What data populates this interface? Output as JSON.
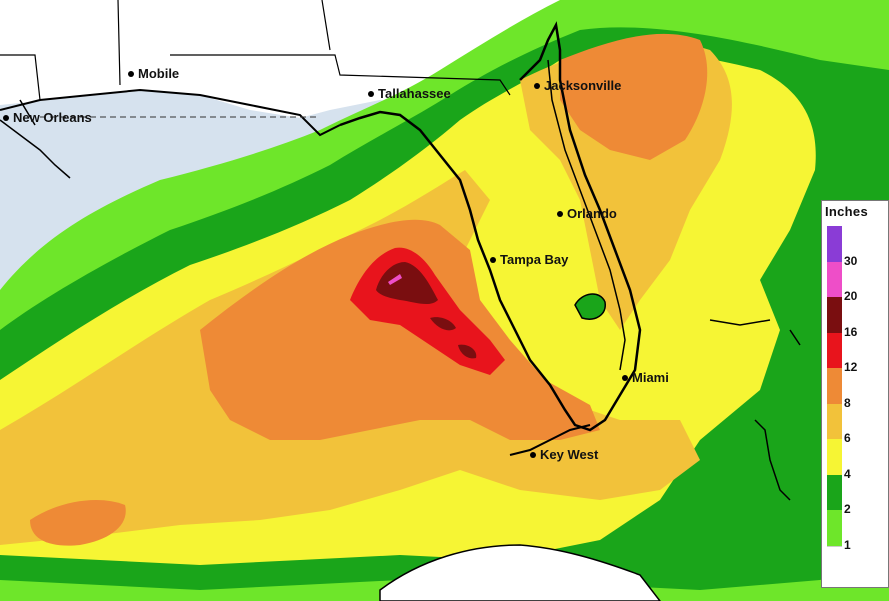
{
  "map": {
    "region": "Florida and Gulf of Mexico",
    "colors": {
      "ocean": "#d6e2ee",
      "land": "#ffffff",
      "border": "#000000"
    },
    "cities": [
      {
        "id": "mobile",
        "label": "Mobile"
      },
      {
        "id": "tallahassee",
        "label": "Tallahassee"
      },
      {
        "id": "jacksonville",
        "label": "Jacksonville"
      },
      {
        "id": "new-orleans",
        "label": "New Orleans"
      },
      {
        "id": "orlando",
        "label": "Orlando"
      },
      {
        "id": "tampa-bay",
        "label": "Tampa Bay"
      },
      {
        "id": "miami",
        "label": "Miami"
      },
      {
        "id": "key-west",
        "label": "Key West"
      }
    ]
  },
  "legend": {
    "title": "Inches",
    "levels": [
      {
        "label": "30",
        "color": "#8a3cd6"
      },
      {
        "label": "20",
        "color": "#ee4ec8"
      },
      {
        "label": "16",
        "color": "#7a0e10"
      },
      {
        "label": "12",
        "color": "#e8141c"
      },
      {
        "label": "8",
        "color": "#ee8a36"
      },
      {
        "label": "6",
        "color": "#f2c23a"
      },
      {
        "label": "4",
        "color": "#f6f534"
      },
      {
        "label": "2",
        "color": "#1aa51a"
      },
      {
        "label": "1",
        "color": "#6ee62a"
      }
    ]
  }
}
